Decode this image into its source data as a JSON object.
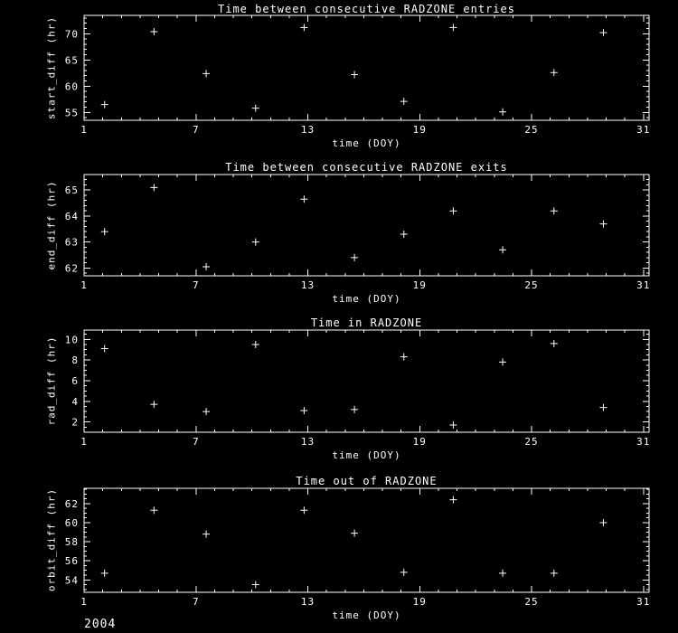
{
  "colors": {
    "background": "#000000",
    "foreground": "#ffffff"
  },
  "footer": {
    "year": "2004"
  },
  "chart_data": [
    {
      "type": "scatter",
      "title": "Time between consecutive RADZONE entries",
      "xlabel": "time (DOY)",
      "ylabel": "start_diff (hr)",
      "marker": "plus",
      "grid": false,
      "legend": "none",
      "xlim": [
        1,
        31.3
      ],
      "ylim": [
        53.5,
        73.5
      ],
      "xticks": [
        1,
        7,
        13,
        19,
        25,
        31
      ],
      "yticks": [
        55,
        60,
        65,
        70
      ],
      "x_minor_interval": 1,
      "y_minor_interval": 1,
      "points": {
        "x": [
          2.1,
          4.75,
          7.55,
          10.2,
          12.8,
          15.5,
          18.15,
          20.8,
          23.45,
          26.2,
          28.85
        ],
        "y": [
          56.5,
          70.4,
          62.4,
          55.8,
          71.2,
          62.2,
          57.1,
          71.2,
          55.1,
          62.6,
          70.2
        ]
      }
    },
    {
      "type": "scatter",
      "title": "Time between consecutive RADZONE exits",
      "xlabel": "time (DOY)",
      "ylabel": "end_diff (hr)",
      "marker": "plus",
      "grid": false,
      "legend": "none",
      "xlim": [
        1,
        31.3
      ],
      "ylim": [
        61.7,
        65.6
      ],
      "xticks": [
        1,
        7,
        13,
        19,
        25,
        31
      ],
      "yticks": [
        62,
        63,
        64,
        65
      ],
      "x_minor_interval": 1,
      "y_minor_interval": 0.2,
      "points": {
        "x": [
          2.1,
          4.75,
          7.55,
          10.2,
          12.8,
          15.5,
          18.15,
          20.8,
          23.45,
          26.2,
          28.85
        ],
        "y": [
          63.4,
          65.1,
          62.05,
          63.0,
          64.65,
          62.4,
          63.3,
          64.2,
          62.7,
          64.2,
          63.7
        ]
      }
    },
    {
      "type": "scatter",
      "title": "Time in RADZONE",
      "xlabel": "time (DOY)",
      "ylabel": "rad_diff (hr)",
      "marker": "plus",
      "grid": false,
      "legend": "none",
      "xlim": [
        1,
        31.3
      ],
      "ylim": [
        1.0,
        10.9
      ],
      "xticks": [
        1,
        7,
        13,
        19,
        25,
        31
      ],
      "yticks": [
        2,
        4,
        6,
        8,
        10
      ],
      "x_minor_interval": 1,
      "y_minor_interval": 0.5,
      "points": {
        "x": [
          2.1,
          4.75,
          7.55,
          10.2,
          12.8,
          15.5,
          18.15,
          20.8,
          23.45,
          26.2,
          28.85
        ],
        "y": [
          9.1,
          3.7,
          3.0,
          9.5,
          3.1,
          3.2,
          8.3,
          1.7,
          7.8,
          9.6,
          3.4
        ]
      }
    },
    {
      "type": "scatter",
      "title": "Time out of RADZONE",
      "xlabel": "time (DOY)",
      "ylabel": "orbit_diff (hr)",
      "marker": "plus",
      "grid": false,
      "legend": "none",
      "xlim": [
        1,
        31.3
      ],
      "ylim": [
        52.7,
        63.6
      ],
      "xticks": [
        1,
        7,
        13,
        19,
        25,
        31
      ],
      "yticks": [
        54,
        56,
        58,
        60,
        62
      ],
      "x_minor_interval": 1,
      "y_minor_interval": 0.5,
      "points": {
        "x": [
          2.1,
          4.75,
          7.55,
          10.2,
          12.8,
          15.5,
          18.15,
          20.8,
          23.45,
          26.2,
          28.85
        ],
        "y": [
          54.7,
          61.3,
          58.8,
          53.5,
          61.3,
          58.9,
          54.8,
          62.4,
          54.7,
          54.7,
          60.0
        ]
      }
    }
  ]
}
